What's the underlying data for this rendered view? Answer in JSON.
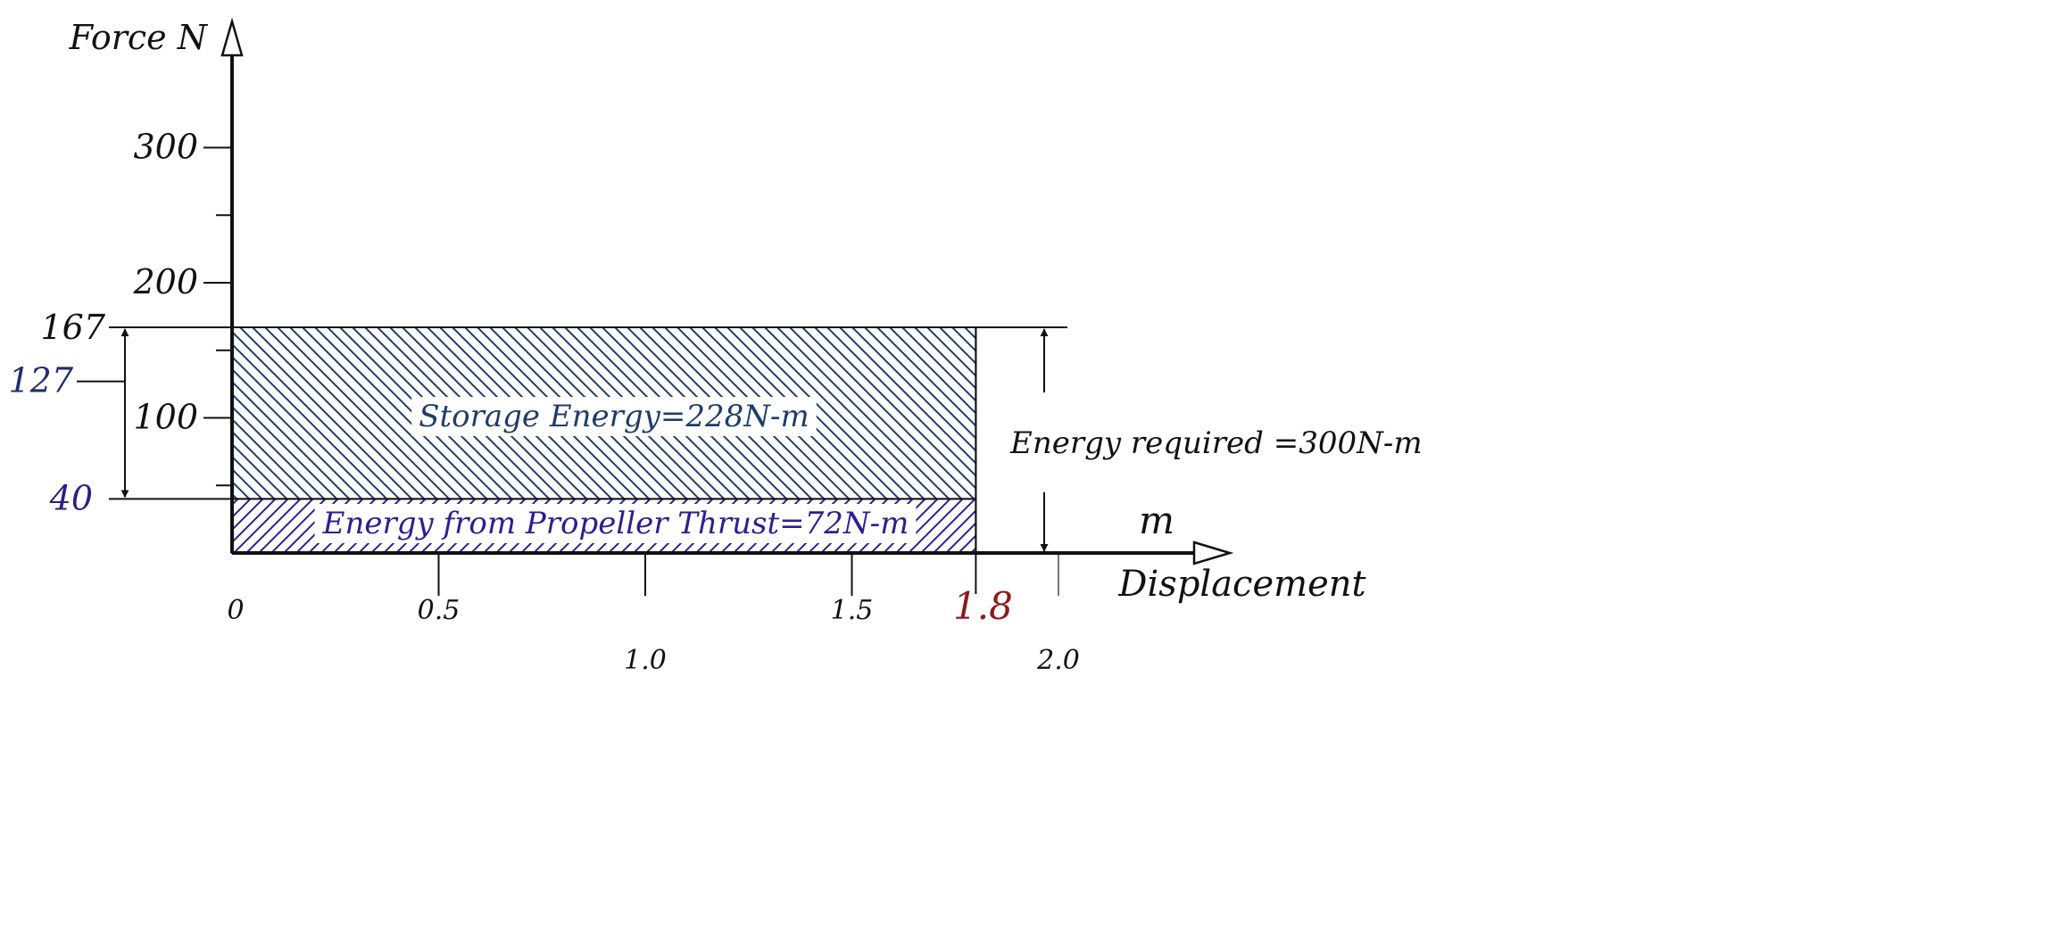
{
  "chart_data": {
    "type": "area",
    "axes": {
      "y_label": "Force N",
      "x_label": "Displacement",
      "x_unit": "m",
      "x_ticks": [
        {
          "value": 0,
          "label": "0"
        },
        {
          "value": 0.5,
          "label": "0.5"
        },
        {
          "value": 1.0,
          "label": "1.0"
        },
        {
          "value": 1.5,
          "label": "1.5"
        },
        {
          "value": 2.0,
          "label": "2.0"
        }
      ],
      "y_ticks": [
        {
          "value": 100,
          "label": "100"
        },
        {
          "value": 200,
          "label": "200"
        },
        {
          "value": 300,
          "label": "300"
        }
      ],
      "y_minor_ticks": [
        50,
        150,
        250
      ],
      "x_range": [
        0,
        2.5
      ],
      "y_range": [
        0,
        330
      ]
    },
    "markers": {
      "x_end": {
        "value": 1.8,
        "label": "1.8",
        "color": "#8b1a1a"
      },
      "y_top": {
        "value": 167,
        "label": "167",
        "color": "#111111"
      },
      "y_mid": {
        "value": 127,
        "label": "127",
        "color": "#1f2f6b"
      },
      "y_base": {
        "value": 40,
        "label": "40",
        "color": "#2a2080"
      }
    },
    "regions": [
      {
        "y_from": 40,
        "y_to": 167,
        "x_from": 0,
        "x_to": 1.8,
        "hatch": "backslash",
        "color": "#1f3d66",
        "label": "Storage Energy=228N-m"
      },
      {
        "y_from": 0,
        "y_to": 40,
        "x_from": 0,
        "x_to": 1.8,
        "hatch": "slash",
        "color": "#2a2090",
        "label": "Energy from Propeller Thrust=72N-m"
      }
    ],
    "total_annotation": {
      "label": "Energy required =300N-m",
      "y_from": 0,
      "y_to": 167
    }
  }
}
